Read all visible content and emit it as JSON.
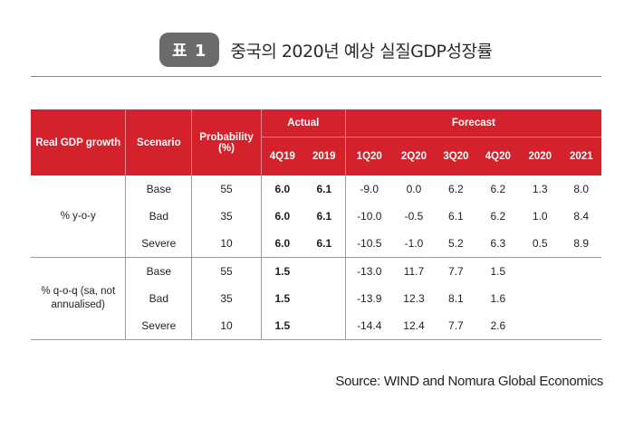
{
  "header": {
    "badge": "표 1",
    "title": "중국의 2020년 예상 실질GDP성장률"
  },
  "table": {
    "col_realgdp": "Real GDP growth",
    "col_scenario": "Scenario",
    "col_probability": "Probability (%)",
    "group_actual": "Actual",
    "group_forecast": "Forecast",
    "periods": [
      "4Q19",
      "2019",
      "1Q20",
      "2Q20",
      "3Q20",
      "4Q20",
      "2020",
      "2021"
    ],
    "groups": [
      {
        "label": "% y-o-y",
        "rows": [
          {
            "scenario": "Base",
            "prob": "55",
            "values": [
              "6.0",
              "6.1",
              "-9.0",
              "0.0",
              "6.2",
              "6.2",
              "1.3",
              "8.0"
            ]
          },
          {
            "scenario": "Bad",
            "prob": "35",
            "values": [
              "6.0",
              "6.1",
              "-10.0",
              "-0.5",
              "6.1",
              "6.2",
              "1.0",
              "8.4"
            ]
          },
          {
            "scenario": "Severe",
            "prob": "10",
            "values": [
              "6.0",
              "6.1",
              "-10.5",
              "-1.0",
              "5.2",
              "6.3",
              "0.5",
              "8.9"
            ]
          }
        ]
      },
      {
        "label": "% q-o-q (sa, not annualised)",
        "rows": [
          {
            "scenario": "Base",
            "prob": "55",
            "values": [
              "1.5",
              "",
              "-13.0",
              "11.7",
              "7.7",
              "1.5",
              "",
              ""
            ]
          },
          {
            "scenario": "Bad",
            "prob": "35",
            "values": [
              "1.5",
              "",
              "-13.9",
              "12.3",
              "8.1",
              "1.6",
              "",
              ""
            ]
          },
          {
            "scenario": "Severe",
            "prob": "10",
            "values": [
              "1.5",
              "",
              "-14.4",
              "12.4",
              "7.7",
              "2.6",
              "",
              ""
            ]
          }
        ]
      }
    ]
  },
  "source": "Source: WIND and Nomura Global Economics",
  "colors": {
    "header_red": "#d3222c",
    "badge_gray": "#6b6b6b"
  }
}
